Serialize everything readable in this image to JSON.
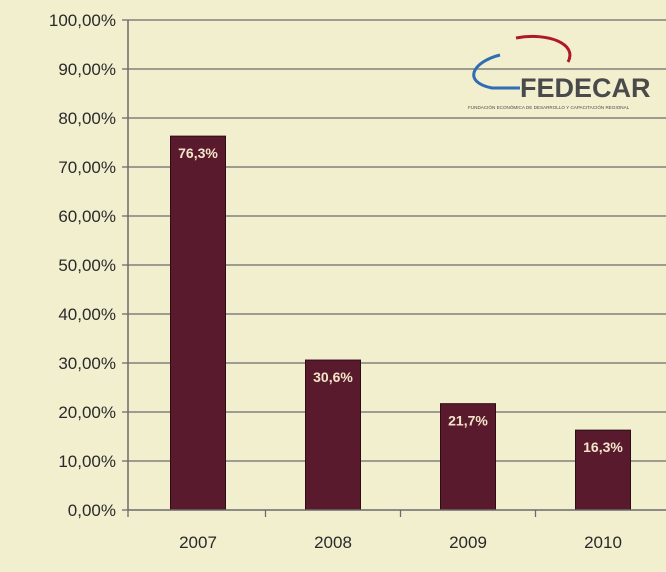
{
  "chart_data": {
    "type": "bar",
    "title": "",
    "xlabel": "",
    "ylabel": "",
    "categories": [
      "2007",
      "2008",
      "2009",
      "2010"
    ],
    "values": [
      76.3,
      30.6,
      21.7,
      16.3
    ],
    "data_labels": [
      "76,3%",
      "30,6%",
      "21,7%",
      "16,3%"
    ],
    "ylim": [
      0,
      100
    ],
    "y_ticks": [
      0,
      10,
      20,
      30,
      40,
      50,
      60,
      70,
      80,
      90,
      100
    ],
    "y_tick_labels": [
      "0,00%",
      "10,00%",
      "20,00%",
      "30,00%",
      "40,00%",
      "50,00%",
      "60,00%",
      "70,00%",
      "80,00%",
      "90,00%",
      "100,00%"
    ],
    "grid": true,
    "legend": "none",
    "colors": {
      "bar": "#5a1a2e",
      "bar_border": "#2e0c16",
      "data_label": "#f3e6c8",
      "grid": "#6b6b6b",
      "axis_text": "#2a2a2a",
      "background": "#f2efcf"
    }
  },
  "logo": {
    "text": "FEDECAR",
    "subtext": "FUNDACIÓN ECONÓMICA DE DESARROLLO Y CAPACITACIÓN REGIONAL",
    "colors": {
      "text": "#4a4a4a",
      "swoosh_red": "#b0182a",
      "swoosh_blue": "#2f6db5"
    }
  }
}
